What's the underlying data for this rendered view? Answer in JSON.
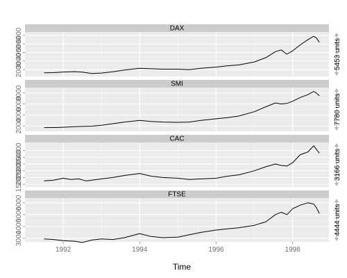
{
  "chart_data": {
    "type": "line",
    "xlabel": "Time",
    "xlim": [
      1991.0,
      1998.95
    ],
    "x_ticks": [
      1992,
      1994,
      1996,
      1998
    ],
    "x_tick_labels": [
      "1992",
      "1994",
      "1996",
      "1998"
    ],
    "grid": true,
    "series": [
      {
        "name": "DAX",
        "ylim": [
          1200,
          6400
        ],
        "y_ticks": [
          2000,
          3000,
          4000,
          5000,
          6000
        ],
        "y_tick_labels": [
          "2000",
          "3000",
          "4000",
          "5000",
          "6000"
        ],
        "scale_label": "5453 units",
        "points": [
          [
            1991.5,
            1630
          ],
          [
            1991.75,
            1650
          ],
          [
            1992.0,
            1720
          ],
          [
            1992.3,
            1760
          ],
          [
            1992.5,
            1700
          ],
          [
            1992.75,
            1550
          ],
          [
            1993.0,
            1600
          ],
          [
            1993.3,
            1750
          ],
          [
            1993.6,
            1950
          ],
          [
            1994.0,
            2150
          ],
          [
            1994.3,
            2100
          ],
          [
            1994.6,
            2050
          ],
          [
            1995.0,
            2050
          ],
          [
            1995.3,
            2000
          ],
          [
            1995.6,
            2150
          ],
          [
            1996.0,
            2300
          ],
          [
            1996.3,
            2450
          ],
          [
            1996.6,
            2550
          ],
          [
            1997.0,
            2900
          ],
          [
            1997.3,
            3400
          ],
          [
            1997.55,
            4100
          ],
          [
            1997.7,
            4300
          ],
          [
            1997.85,
            3800
          ],
          [
            1998.0,
            4200
          ],
          [
            1998.2,
            4900
          ],
          [
            1998.4,
            5500
          ],
          [
            1998.55,
            5900
          ],
          [
            1998.62,
            5700
          ],
          [
            1998.7,
            5200
          ]
        ]
      },
      {
        "name": "SMI",
        "ylim": [
          1000,
          9000
        ],
        "y_ticks": [
          2000,
          4000,
          6000,
          8000
        ],
        "y_tick_labels": [
          "2000",
          "4000",
          "6000",
          "8000"
        ],
        "scale_label": "7780 units",
        "points": [
          [
            1991.5,
            1680
          ],
          [
            1991.75,
            1700
          ],
          [
            1992.0,
            1750
          ],
          [
            1992.3,
            1850
          ],
          [
            1992.5,
            1900
          ],
          [
            1992.75,
            1950
          ],
          [
            1993.0,
            2100
          ],
          [
            1993.3,
            2400
          ],
          [
            1993.6,
            2700
          ],
          [
            1994.0,
            3000
          ],
          [
            1994.3,
            2800
          ],
          [
            1994.6,
            2700
          ],
          [
            1995.0,
            2650
          ],
          [
            1995.3,
            2700
          ],
          [
            1995.6,
            3000
          ],
          [
            1996.0,
            3300
          ],
          [
            1996.3,
            3500
          ],
          [
            1996.6,
            3800
          ],
          [
            1997.0,
            4600
          ],
          [
            1997.3,
            5500
          ],
          [
            1997.55,
            6200
          ],
          [
            1997.7,
            6000
          ],
          [
            1997.85,
            6100
          ],
          [
            1998.0,
            6500
          ],
          [
            1998.2,
            7200
          ],
          [
            1998.4,
            7700
          ],
          [
            1998.55,
            8300
          ],
          [
            1998.62,
            8000
          ],
          [
            1998.7,
            7500
          ]
        ]
      },
      {
        "name": "CAC",
        "ylim": [
          1300,
          4600
        ],
        "y_ticks": [
          1500,
          2000,
          2500,
          3000,
          3500,
          4000
        ],
        "y_tick_labels": [
          "1500",
          "2000",
          "2500",
          "3000",
          "3500",
          "4000"
        ],
        "scale_label": "3166 units",
        "points": [
          [
            1991.5,
            1750
          ],
          [
            1991.75,
            1800
          ],
          [
            1992.0,
            1950
          ],
          [
            1992.2,
            1850
          ],
          [
            1992.4,
            1900
          ],
          [
            1992.6,
            1750
          ],
          [
            1992.75,
            1800
          ],
          [
            1993.0,
            1900
          ],
          [
            1993.3,
            2000
          ],
          [
            1993.6,
            2150
          ],
          [
            1994.0,
            2300
          ],
          [
            1994.3,
            2100
          ],
          [
            1994.6,
            2000
          ],
          [
            1995.0,
            1950
          ],
          [
            1995.3,
            1850
          ],
          [
            1995.6,
            1900
          ],
          [
            1996.0,
            1950
          ],
          [
            1996.3,
            2100
          ],
          [
            1996.6,
            2200
          ],
          [
            1997.0,
            2500
          ],
          [
            1997.3,
            2800
          ],
          [
            1997.55,
            3000
          ],
          [
            1997.7,
            2900
          ],
          [
            1997.85,
            2850
          ],
          [
            1998.0,
            3100
          ],
          [
            1998.2,
            3700
          ],
          [
            1998.4,
            3900
          ],
          [
            1998.55,
            4350
          ],
          [
            1998.62,
            4100
          ],
          [
            1998.7,
            3800
          ]
        ]
      },
      {
        "name": "FTSE",
        "ylim": [
          2700,
          6400
        ],
        "y_ticks": [
          3000,
          4000,
          5000,
          6000
        ],
        "y_tick_labels": [
          "3000",
          "4000",
          "5000",
          "6000"
        ],
        "scale_label": "4444 units",
        "points": [
          [
            1991.5,
            2950
          ],
          [
            1991.75,
            2900
          ],
          [
            1992.0,
            2800
          ],
          [
            1992.3,
            2750
          ],
          [
            1992.5,
            2650
          ],
          [
            1992.75,
            2850
          ],
          [
            1993.0,
            2950
          ],
          [
            1993.3,
            2900
          ],
          [
            1993.6,
            3050
          ],
          [
            1994.0,
            3400
          ],
          [
            1994.3,
            3150
          ],
          [
            1994.6,
            3050
          ],
          [
            1995.0,
            3100
          ],
          [
            1995.3,
            3300
          ],
          [
            1995.6,
            3500
          ],
          [
            1996.0,
            3700
          ],
          [
            1996.3,
            3800
          ],
          [
            1996.6,
            3900
          ],
          [
            1997.0,
            4100
          ],
          [
            1997.3,
            4400
          ],
          [
            1997.55,
            5000
          ],
          [
            1997.7,
            5200
          ],
          [
            1997.85,
            5000
          ],
          [
            1998.0,
            5500
          ],
          [
            1998.2,
            5800
          ],
          [
            1998.4,
            6000
          ],
          [
            1998.55,
            5900
          ],
          [
            1998.62,
            5600
          ],
          [
            1998.7,
            5100
          ]
        ]
      }
    ]
  }
}
